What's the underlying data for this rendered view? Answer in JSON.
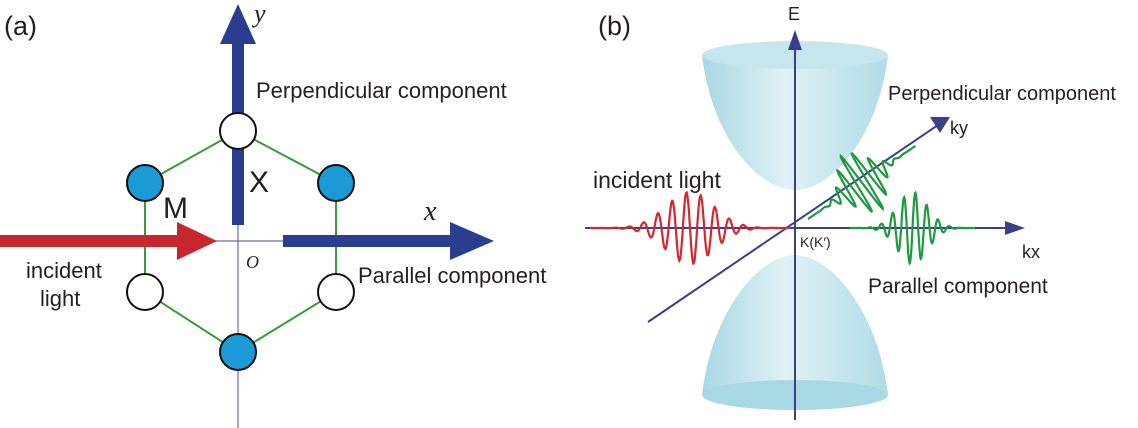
{
  "panels": [
    {
      "label": "(a)",
      "axis_y": "y",
      "axis_x": "x",
      "origin": "O",
      "site_x": "X",
      "site_m": "M",
      "perpendicular": "Perpendicular component",
      "parallel": "Parallel component",
      "incident": [
        "incident",
        "light"
      ]
    },
    {
      "label": "(b)",
      "axis_e": "E",
      "axis_ky": "ky",
      "axis_kx": "kx",
      "point": "K(K′)",
      "perpendicular": "Perpendicular component",
      "parallel": "Parallel component",
      "incident": "incident light"
    }
  ]
}
